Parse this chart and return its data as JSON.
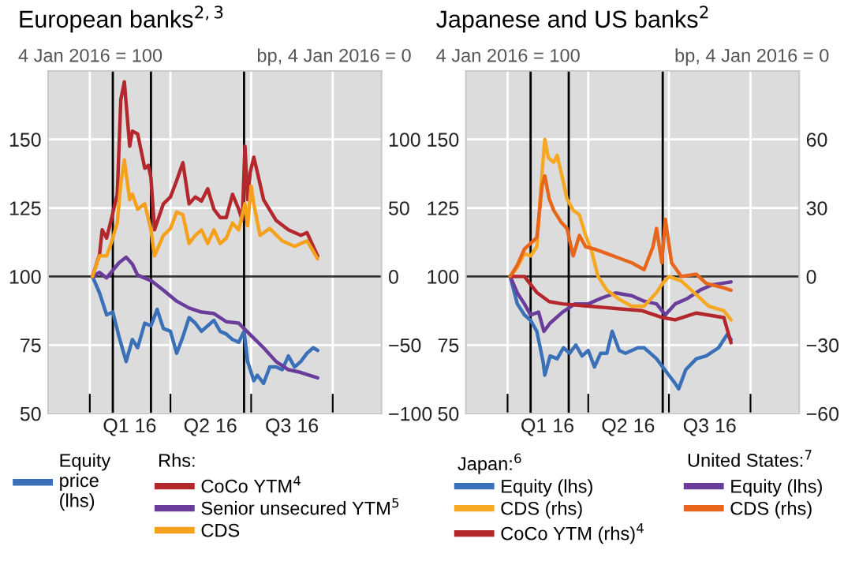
{
  "chart_data": [
    {
      "type": "line",
      "title": "European banks$^{2,3}$",
      "ylabel": "4 Jan 2016 = 100",
      "y2label": "bp, 4 Jan 2016 = 0",
      "xlim": [
        "2015-11-15",
        "2016-11-25"
      ],
      "xticks": [
        {
          "value": "2016-01-01",
          "label": null
        },
        {
          "value": "2016-02-15",
          "label": "Q1 16"
        },
        {
          "value": "2016-04-01",
          "label": null
        },
        {
          "value": "2016-05-16",
          "label": "Q2 16"
        },
        {
          "value": "2016-07-01",
          "label": null
        },
        {
          "value": "2016-08-16",
          "label": "Q3 16"
        },
        {
          "value": "2016-10-01",
          "label": null
        }
      ],
      "ylim": [
        50,
        175
      ],
      "yticks": [
        50,
        75,
        100,
        125,
        150
      ],
      "y2lim": [
        -100,
        150
      ],
      "y2ticks": [
        {
          "value": -100,
          "label": "−100"
        },
        {
          "value": -50,
          "label": "−50"
        },
        0,
        50,
        100
      ],
      "grid": true,
      "line_style": "solid",
      "legend": "bottom",
      "annotations": [
        "Rhs:"
      ],
      "ref_lines": [
        {
          "axis": "y",
          "value": 100,
          "color": "#333333"
        },
        {
          "axis": "x",
          "value": "2016-01-27",
          "color": "#000000"
        },
        {
          "axis": "x",
          "value": "2016-03-10",
          "color": "#000000"
        },
        {
          "axis": "x",
          "value": "2016-06-23",
          "color": "#000000"
        }
      ],
      "series": [
        {
          "name": "Equity\nprice\n(lhs)",
          "color": "#3a70b8",
          "axis": "y",
          "x": [
            "2016-01-04",
            "2016-01-12",
            "2016-01-20",
            "2016-01-27",
            "2016-02-03",
            "2016-02-11",
            "2016-02-18",
            "2016-02-24",
            "2016-03-03",
            "2016-03-10",
            "2016-03-17",
            "2016-03-24",
            "2016-04-01",
            "2016-04-08",
            "2016-04-15",
            "2016-04-22",
            "2016-04-29",
            "2016-05-06",
            "2016-05-13",
            "2016-05-20",
            "2016-05-27",
            "2016-06-03",
            "2016-06-10",
            "2016-06-17",
            "2016-06-23",
            "2016-06-27",
            "2016-07-04",
            "2016-07-08",
            "2016-07-15",
            "2016-07-22",
            "2016-07-29",
            "2016-08-05",
            "2016-08-12",
            "2016-08-19",
            "2016-08-26",
            "2016-09-02",
            "2016-09-09",
            "2016-09-14"
          ],
          "values": [
            100,
            94,
            86,
            87,
            78,
            69,
            77,
            74,
            83,
            82,
            88,
            81,
            80,
            72,
            78,
            85,
            83,
            80,
            82,
            84,
            80,
            79,
            77,
            76,
            80,
            69,
            62,
            64,
            61,
            67,
            67,
            66,
            71,
            67,
            69,
            72,
            74,
            73
          ]
        },
        {
          "name": "CoCo YTM$^{4}$",
          "color": "#b4282d",
          "axis": "y2",
          "x": [
            "2016-01-04",
            "2016-01-12",
            "2016-01-15",
            "2016-01-20",
            "2016-01-25",
            "2016-02-01",
            "2016-02-05",
            "2016-02-09",
            "2016-02-15",
            "2016-02-18",
            "2016-02-24",
            "2016-03-03",
            "2016-03-07",
            "2016-03-10",
            "2016-03-14",
            "2016-03-24",
            "2016-04-01",
            "2016-04-08",
            "2016-04-15",
            "2016-04-22",
            "2016-04-29",
            "2016-05-06",
            "2016-05-13",
            "2016-05-20",
            "2016-05-27",
            "2016-06-03",
            "2016-06-10",
            "2016-06-17",
            "2016-06-21",
            "2016-06-24",
            "2016-06-27",
            "2016-06-30",
            "2016-07-04",
            "2016-07-08",
            "2016-07-15",
            "2016-07-29",
            "2016-08-12",
            "2016-08-26",
            "2016-09-02",
            "2016-09-09",
            "2016-09-14"
          ],
          "values": [
            0,
            16,
            34,
            28,
            41,
            60,
            129,
            142,
            95,
            106,
            104,
            79,
            81,
            72,
            34,
            53,
            58,
            70,
            83,
            53,
            58,
            55,
            64,
            49,
            43,
            43,
            60,
            49,
            41,
            95,
            56,
            76,
            87,
            76,
            56,
            41,
            34,
            30,
            32,
            22,
            15
          ]
        },
        {
          "name": "Senior unsecured YTM$^{5}$",
          "color": "#6a3d9a",
          "axis": "y2",
          "x": [
            "2016-01-04",
            "2016-01-12",
            "2016-01-20",
            "2016-02-03",
            "2016-02-11",
            "2016-02-18",
            "2016-02-24",
            "2016-03-10",
            "2016-03-24",
            "2016-04-08",
            "2016-04-22",
            "2016-05-06",
            "2016-05-20",
            "2016-06-03",
            "2016-06-17",
            "2016-06-23",
            "2016-07-04",
            "2016-07-15",
            "2016-07-29",
            "2016-08-12",
            "2016-08-26",
            "2016-09-09",
            "2016-09-14"
          ],
          "values": [
            0,
            3,
            -1,
            10,
            14,
            9,
            1,
            -3,
            -10,
            -18,
            -23,
            -26,
            -27,
            -33,
            -34,
            -38,
            -45,
            -52,
            -62,
            -68,
            -70,
            -73,
            -74
          ]
        },
        {
          "name": "CDS",
          "color": "#f5a11c",
          "axis": "y2",
          "x": [
            "2016-01-04",
            "2016-01-12",
            "2016-01-20",
            "2016-01-25",
            "2016-02-01",
            "2016-02-05",
            "2016-02-09",
            "2016-02-15",
            "2016-02-18",
            "2016-02-24",
            "2016-03-03",
            "2016-03-10",
            "2016-03-14",
            "2016-03-24",
            "2016-04-01",
            "2016-04-08",
            "2016-04-15",
            "2016-04-22",
            "2016-04-29",
            "2016-05-06",
            "2016-05-13",
            "2016-05-20",
            "2016-05-27",
            "2016-06-03",
            "2016-06-10",
            "2016-06-17",
            "2016-06-24",
            "2016-06-27",
            "2016-07-01",
            "2016-07-04",
            "2016-07-11",
            "2016-07-22",
            "2016-08-05",
            "2016-08-19",
            "2016-09-02",
            "2016-09-14"
          ],
          "values": [
            0,
            15,
            15,
            24,
            39,
            68,
            85,
            56,
            60,
            49,
            53,
            34,
            15,
            30,
            35,
            47,
            45,
            24,
            30,
            34,
            24,
            34,
            24,
            28,
            39,
            34,
            53,
            37,
            66,
            53,
            30,
            35,
            26,
            22,
            26,
            13
          ]
        }
      ]
    },
    {
      "type": "line",
      "title": "Japanese and US banks$^{2}$",
      "ylabel": "4 Jan 2016 = 100",
      "y2label": "bp, 4 Jan 2016 = 0",
      "xlim": [
        "2015-11-15",
        "2016-11-25"
      ],
      "xticks": [
        {
          "value": "2016-01-01",
          "label": null
        },
        {
          "value": "2016-02-15",
          "label": "Q1 16"
        },
        {
          "value": "2016-04-01",
          "label": null
        },
        {
          "value": "2016-05-16",
          "label": "Q2 16"
        },
        {
          "value": "2016-07-01",
          "label": null
        },
        {
          "value": "2016-08-16",
          "label": "Q3 16"
        },
        {
          "value": "2016-10-01",
          "label": null
        }
      ],
      "ylim": [
        50,
        175
      ],
      "yticks": [
        50,
        75,
        100,
        125,
        150
      ],
      "y2lim": [
        -60,
        90
      ],
      "y2ticks": [
        {
          "value": -60,
          "label": "−60"
        },
        {
          "value": -30,
          "label": "−30"
        },
        0,
        30,
        60
      ],
      "grid": true,
      "line_style": "solid",
      "legend": "bottom",
      "annotations": [
        "Japan:$^{6}$",
        "United States:$^{7}$"
      ],
      "ref_lines": [
        {
          "axis": "y",
          "value": 100,
          "color": "#333333"
        },
        {
          "axis": "x",
          "value": "2016-01-27",
          "color": "#000000"
        },
        {
          "axis": "x",
          "value": "2016-03-10",
          "color": "#000000"
        },
        {
          "axis": "x",
          "value": "2016-06-24",
          "color": "#000000"
        }
      ],
      "series": [
        {
          "name": "Equity (lhs)",
          "color": "#3a70b8",
          "axis": "y",
          "x": [
            "2016-01-04",
            "2016-01-12",
            "2016-01-20",
            "2016-01-27",
            "2016-02-03",
            "2016-02-10",
            "2016-02-12",
            "2016-02-18",
            "2016-02-26",
            "2016-03-04",
            "2016-03-11",
            "2016-03-18",
            "2016-03-25",
            "2016-04-01",
            "2016-04-08",
            "2016-04-15",
            "2016-04-22",
            "2016-04-28",
            "2016-05-06",
            "2016-05-13",
            "2016-05-20",
            "2016-05-27",
            "2016-06-03",
            "2016-06-10",
            "2016-06-17",
            "2016-06-24",
            "2016-07-01",
            "2016-07-08",
            "2016-07-12",
            "2016-07-20",
            "2016-08-01",
            "2016-08-12",
            "2016-08-26",
            "2016-09-05",
            "2016-09-09"
          ],
          "values": [
            100,
            90,
            86,
            84,
            80,
            69,
            64,
            71,
            70,
            74,
            72,
            75,
            71,
            73,
            67,
            72,
            72,
            80,
            73,
            72,
            73,
            74,
            74,
            72,
            70,
            67,
            64,
            61,
            59,
            66,
            70,
            71,
            74,
            79,
            77
          ]
        },
        {
          "name": "CDS (rhs)",
          "color": "#f7a823",
          "axis": "y2",
          "x": [
            "2016-01-04",
            "2016-01-12",
            "2016-01-20",
            "2016-01-27",
            "2016-02-03",
            "2016-02-08",
            "2016-02-12",
            "2016-02-16",
            "2016-02-22",
            "2016-02-26",
            "2016-03-03",
            "2016-03-08",
            "2016-03-15",
            "2016-03-22",
            "2016-03-29",
            "2016-04-05",
            "2016-04-12",
            "2016-04-22",
            "2016-05-06",
            "2016-05-20",
            "2016-06-03",
            "2016-06-17",
            "2016-06-24",
            "2016-07-01",
            "2016-07-15",
            "2016-08-01",
            "2016-08-15",
            "2016-09-01",
            "2016-09-09"
          ],
          "values": [
            0,
            4,
            10,
            9,
            13,
            41,
            60,
            52,
            50,
            53,
            43,
            34,
            29,
            27,
            18,
            11,
            0,
            -6,
            -10,
            -13,
            -13,
            -7,
            -3,
            0,
            -2,
            -8,
            -13,
            -15,
            -19
          ]
        },
        {
          "name": "CoCo YTM (rhs)$^{4}$",
          "color": "#b4282d",
          "axis": "y2",
          "x": [
            "2016-01-04",
            "2016-01-20",
            "2016-02-03",
            "2016-02-17",
            "2016-03-03",
            "2016-04-01",
            "2016-05-02",
            "2016-06-01",
            "2016-06-24",
            "2016-07-08",
            "2016-08-01",
            "2016-09-01",
            "2016-09-09"
          ],
          "values": [
            0,
            0,
            -7,
            -11,
            -12,
            -13,
            -14,
            -15,
            -18,
            -19,
            -16,
            -18,
            -29
          ]
        },
        {
          "name": "Equity (lhs)",
          "color": "#6a3d9a",
          "axis": "y",
          "x": [
            "2016-01-04",
            "2016-01-12",
            "2016-01-20",
            "2016-01-27",
            "2016-02-05",
            "2016-02-11",
            "2016-02-18",
            "2016-03-03",
            "2016-03-17",
            "2016-04-01",
            "2016-04-15",
            "2016-05-02",
            "2016-05-20",
            "2016-06-03",
            "2016-06-17",
            "2016-06-27",
            "2016-07-08",
            "2016-07-22",
            "2016-08-05",
            "2016-08-19",
            "2016-09-09"
          ],
          "values": [
            100,
            94,
            90,
            86,
            87,
            80,
            83,
            87,
            90,
            90,
            92,
            94,
            93,
            91,
            90,
            86,
            90,
            92,
            95,
            97,
            98
          ]
        },
        {
          "name": "CDS (rhs)",
          "color": "#e8651c",
          "axis": "y2",
          "x": [
            "2016-01-04",
            "2016-01-12",
            "2016-01-20",
            "2016-02-03",
            "2016-02-09",
            "2016-02-12",
            "2016-02-17",
            "2016-02-22",
            "2016-03-01",
            "2016-03-08",
            "2016-03-15",
            "2016-03-22",
            "2016-03-29",
            "2016-04-08",
            "2016-04-22",
            "2016-05-06",
            "2016-05-20",
            "2016-06-03",
            "2016-06-13",
            "2016-06-17",
            "2016-06-23",
            "2016-06-27",
            "2016-07-04",
            "2016-07-15",
            "2016-08-01",
            "2016-08-12",
            "2016-09-01",
            "2016-09-09"
          ],
          "values": [
            0,
            5,
            12,
            17,
            40,
            44,
            34,
            29,
            24,
            21,
            9,
            18,
            13,
            12,
            10,
            8,
            6,
            3,
            13,
            21,
            6,
            25,
            6,
            0,
            1,
            -3,
            -5,
            -6
          ]
        }
      ]
    }
  ]
}
